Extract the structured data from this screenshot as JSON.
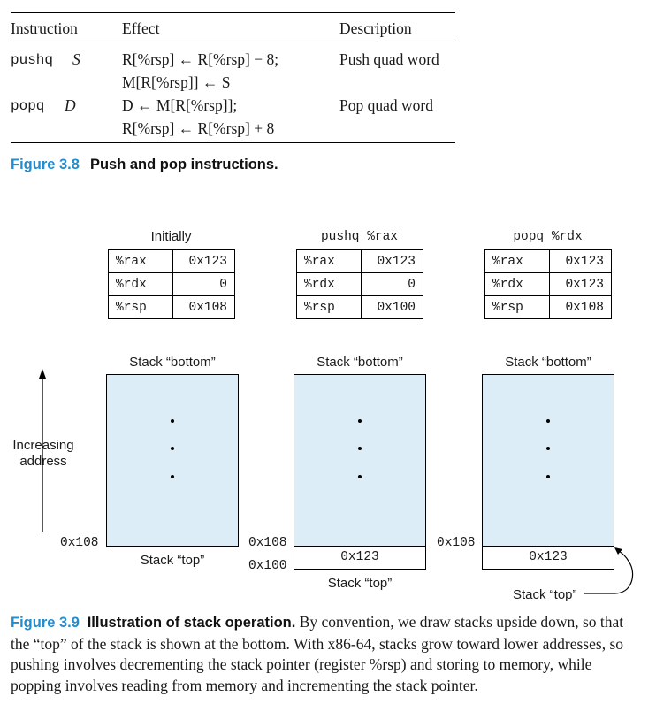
{
  "fig38": {
    "headers": {
      "instruction": "Instruction",
      "effect": "Effect",
      "description": "Description"
    },
    "push": {
      "op": "pushq",
      "operand": "S",
      "effect1": "R[%rsp] ← R[%rsp] − 8;",
      "effect2": "M[R[%rsp]] ← S",
      "desc": "Push quad word"
    },
    "pop": {
      "op": "popq",
      "operand": "D",
      "effect1": "D ← M[R[%rsp]];",
      "effect2": "R[%rsp] ← R[%rsp] + 8",
      "desc": "Pop quad word"
    },
    "caption_label": "Figure 3.8",
    "caption_title": "Push and pop instructions."
  },
  "fig39": {
    "axis_label_line1": "Increasing",
    "axis_label_line2": "address",
    "panels": [
      {
        "title": "Initially",
        "regs": [
          {
            "name": "%rax",
            "value": "0x123"
          },
          {
            "name": "%rdx",
            "value": "0"
          },
          {
            "name": "%rsp",
            "value": "0x108"
          }
        ],
        "bottom_label": "Stack “bottom”",
        "top_label": "Stack “top”",
        "addr_a": "0x108"
      },
      {
        "title": "pushq %rax",
        "regs": [
          {
            "name": "%rax",
            "value": "0x123"
          },
          {
            "name": "%rdx",
            "value": "0"
          },
          {
            "name": "%rsp",
            "value": "0x100"
          }
        ],
        "bottom_label": "Stack “bottom”",
        "top_label": "Stack “top”",
        "addr_a": "0x108",
        "addr_b": "0x100",
        "cell_value": "0x123"
      },
      {
        "title": "popq %rdx",
        "regs": [
          {
            "name": "%rax",
            "value": "0x123"
          },
          {
            "name": "%rdx",
            "value": "0x123"
          },
          {
            "name": "%rsp",
            "value": "0x108"
          }
        ],
        "bottom_label": "Stack “bottom”",
        "top_label": "Stack “top”",
        "addr_a": "0x108",
        "cell_value": "0x123"
      }
    ],
    "caption_label": "Figure 3.9",
    "caption_title": "Illustration of stack operation.",
    "caption_body": "By convention, we draw stacks upside down, so that the “top” of the stack is shown at the bottom. With x86-64, stacks grow toward lower addresses, so pushing involves decrementing the stack pointer (register %rsp) and storing to memory, while popping involves reading from memory and incrementing the stack pointer.",
    "colors": {
      "stack_fill": "#dcedf8",
      "caption_blue": "#1f8dd0"
    }
  }
}
